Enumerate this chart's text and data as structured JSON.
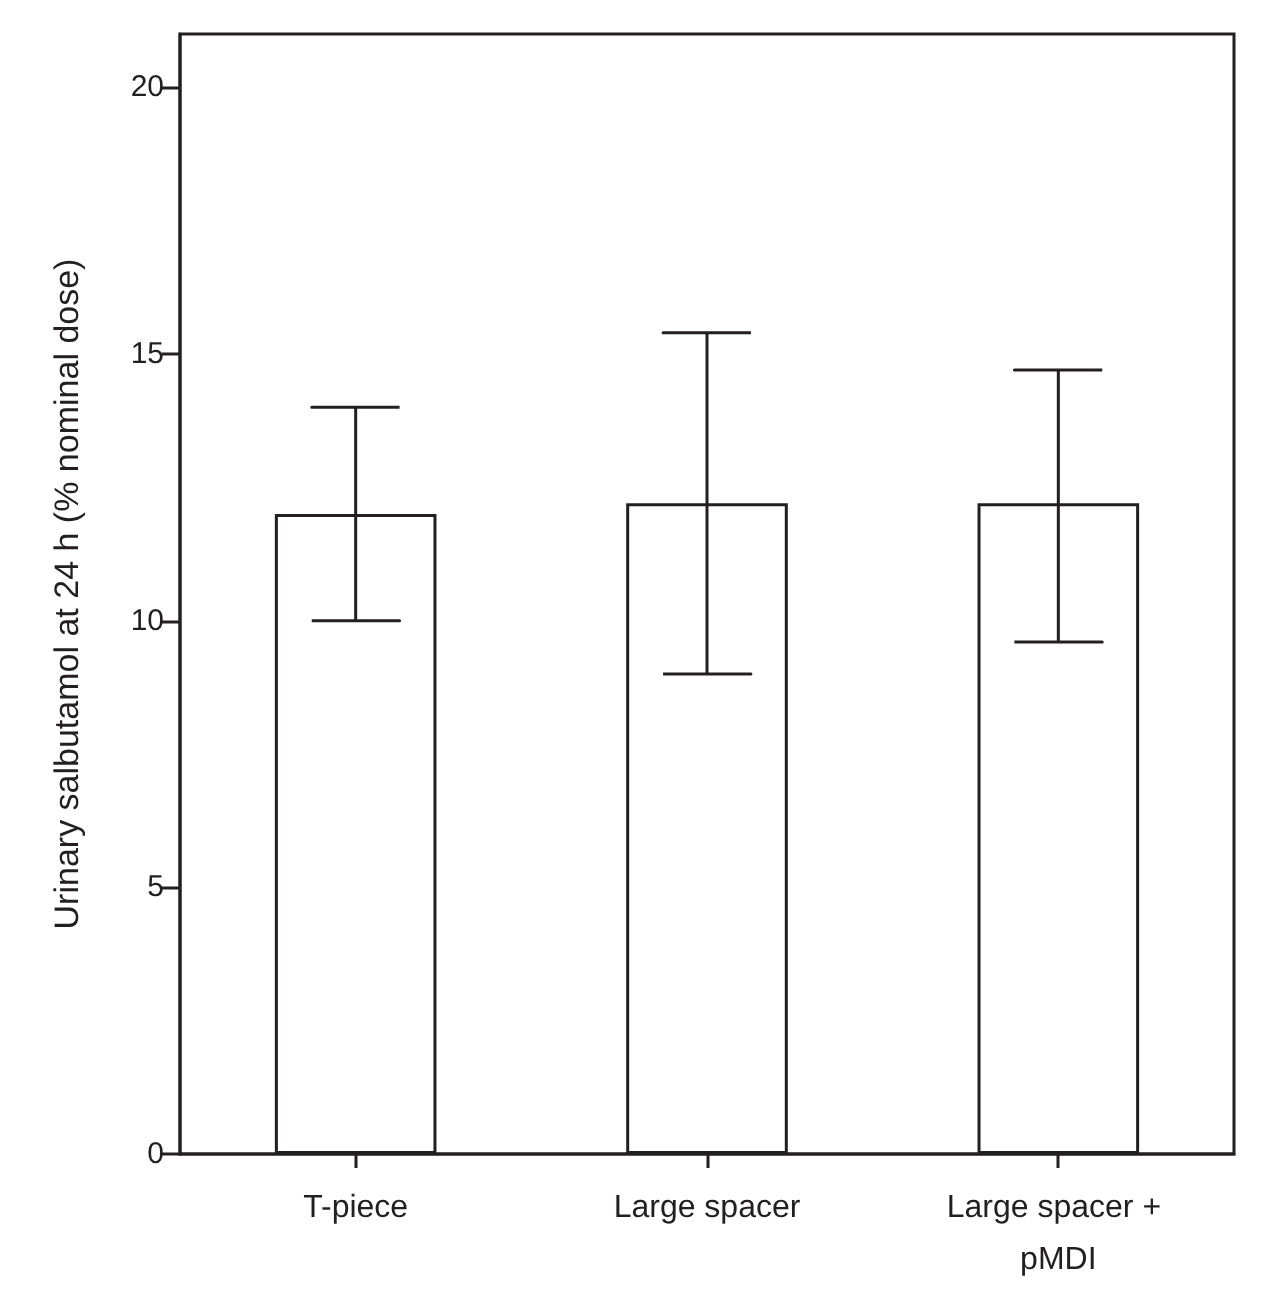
{
  "chart_data": {
    "type": "bar",
    "ylabel": "Urinary salbutamol at 24 h (% nominal dose)",
    "categories": [
      "T-piece",
      "Large spacer",
      "Large spacer + pMDI"
    ],
    "values": [
      12.0,
      12.2,
      12.2
    ],
    "color": "#ffffff",
    "errors": [
      [
        10,
        14
      ],
      [
        9.0,
        15.4
      ],
      [
        9.6,
        14.7
      ]
    ],
    "ylim": [
      0,
      21
    ],
    "yticks": [
      0,
      5,
      10,
      15,
      20
    ],
    "grid": false
  }
}
